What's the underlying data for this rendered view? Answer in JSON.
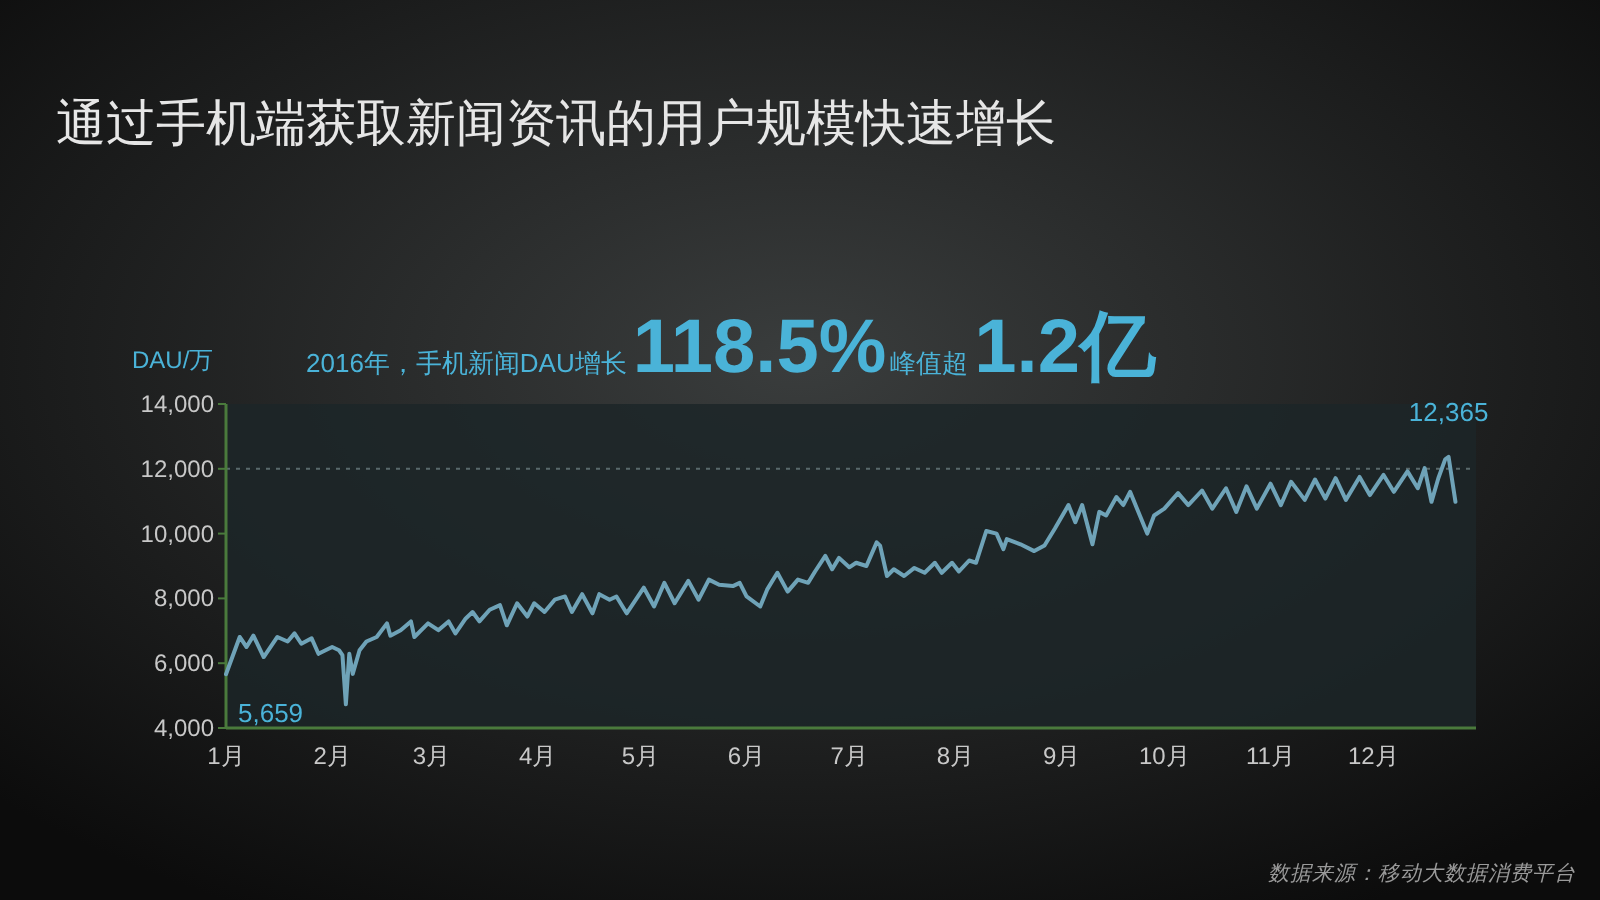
{
  "chart_data": {
    "type": "line",
    "title": "通过手机端获取新闻资讯的用户规模快速增长",
    "ylabel": "DAU/万",
    "x": [
      "--01-01",
      "--01-05",
      "--01-07",
      "--01-09",
      "--01-12",
      "--01-16",
      "--01-19",
      "--01-21",
      "--01-23",
      "--01-26",
      "--01-28",
      "--02-01",
      "--02-03",
      "--02-04",
      "--02-05",
      "--02-06",
      "--02-07",
      "--02-09",
      "--02-11",
      "--02-14",
      "--02-17",
      "--02-18",
      "--02-21",
      "--02-24",
      "--02-25",
      "--02-29",
      "--03-03",
      "--03-06",
      "--03-08",
      "--03-11",
      "--03-13",
      "--03-15",
      "--03-18",
      "--03-21",
      "--03-23",
      "--03-26",
      "--03-29",
      "--03-31",
      "--04-03",
      "--04-06",
      "--04-09",
      "--04-11",
      "--04-14",
      "--04-17",
      "--04-19",
      "--04-22",
      "--04-24",
      "--04-27",
      "--05-02",
      "--05-05",
      "--05-08",
      "--05-11",
      "--05-15",
      "--05-18",
      "--05-21",
      "--05-24",
      "--05-28",
      "--05-30",
      "--06-01",
      "--06-05",
      "--06-07",
      "--06-10",
      "--06-13",
      "--06-16",
      "--06-19",
      "--06-21",
      "--06-24",
      "--06-26",
      "--06-28",
      "--07-01",
      "--07-03",
      "--07-06",
      "--07-09",
      "--07-10",
      "--07-12",
      "--07-14",
      "--07-17",
      "--07-20",
      "--07-23",
      "--07-26",
      "--07-28",
      "--07-31",
      "--08-02",
      "--08-05",
      "--08-07",
      "--08-10",
      "--08-13",
      "--08-15",
      "--08-16",
      "--08-20",
      "--08-24",
      "--08-27",
      "--08-30",
      "--09-03",
      "--09-05",
      "--09-07",
      "--09-10",
      "--09-12",
      "--09-14",
      "--09-17",
      "--09-19",
      "--09-21",
      "--09-26",
      "--09-28",
      "--10-01",
      "--10-05",
      "--10-08",
      "--10-12",
      "--10-15",
      "--10-19",
      "--10-22",
      "--10-25",
      "--10-28",
      "--11-01",
      "--11-04",
      "--11-07",
      "--11-11",
      "--11-14",
      "--11-17",
      "--11-20",
      "--11-23",
      "--11-27",
      "--11-30",
      "--12-04",
      "--12-07",
      "--12-11",
      "--12-14",
      "--12-16",
      "--12-18",
      "--12-20",
      "--12-22",
      "--12-23",
      "--12-25"
    ],
    "series": [
      {
        "color": "#6fa3b8",
        "values": [
          5659,
          6810,
          6500,
          6850,
          6190,
          6810,
          6670,
          6920,
          6600,
          6770,
          6290,
          6500,
          6400,
          6250,
          4730,
          6290,
          5670,
          6400,
          6670,
          6810,
          7230,
          6850,
          7020,
          7290,
          6810,
          7230,
          7020,
          7290,
          6920,
          7380,
          7580,
          7290,
          7650,
          7790,
          7170,
          7850,
          7440,
          7850,
          7580,
          7960,
          8060,
          7580,
          8130,
          7540,
          8130,
          7960,
          8060,
          7540,
          8330,
          7750,
          8480,
          7850,
          8540,
          7960,
          8580,
          8420,
          8380,
          8480,
          8060,
          7750,
          8270,
          8790,
          8210,
          8580,
          8480,
          8830,
          9310,
          8900,
          9250,
          8960,
          9100,
          9000,
          9730,
          9630,
          8690,
          8900,
          8690,
          8940,
          8790,
          9100,
          8790,
          9100,
          8830,
          9170,
          9100,
          10080,
          10000,
          9520,
          9830,
          9670,
          9460,
          9630,
          10150,
          10880,
          10350,
          10880,
          9670,
          10670,
          10560,
          11130,
          10880,
          11290,
          10000,
          10560,
          10770,
          11250,
          10880,
          11330,
          10770,
          11400,
          10670,
          11460,
          10770,
          11540,
          10880,
          11600,
          11040,
          11670,
          11080,
          11710,
          11040,
          11750,
          11190,
          11810,
          11290,
          11920,
          11400,
          12020,
          10980,
          11710,
          12290,
          12365,
          10980
        ],
        "value_labels": [
          "5,659",
          null,
          null,
          null,
          null,
          null,
          null,
          null,
          null,
          null,
          null,
          null,
          null,
          null,
          null,
          null,
          null,
          null,
          null,
          null,
          null,
          null,
          null,
          null,
          null,
          null,
          null,
          null,
          null,
          null,
          null,
          null,
          null,
          null,
          null,
          null,
          null,
          null,
          null,
          null,
          null,
          null,
          null,
          null,
          null,
          null,
          null,
          null,
          null,
          null,
          null,
          null,
          null,
          null,
          null,
          null,
          null,
          null,
          null,
          null,
          null,
          null,
          null,
          null,
          null,
          null,
          null,
          null,
          null,
          null,
          null,
          null,
          null,
          null,
          null,
          null,
          null,
          null,
          null,
          null,
          null,
          null,
          null,
          null,
          null,
          null,
          null,
          null,
          null,
          null,
          null,
          null,
          null,
          null,
          null,
          null,
          null,
          null,
          null,
          null,
          null,
          null,
          null,
          null,
          null,
          null,
          null,
          null,
          null,
          null,
          null,
          null,
          null,
          null,
          null,
          null,
          null,
          null,
          null,
          null,
          null,
          null,
          null,
          null,
          null,
          null,
          null,
          null,
          null,
          null,
          null,
          "12,365",
          null
        ]
      }
    ],
    "xlim": [
      "--01-01",
      "--12-31"
    ],
    "xticks": [
      {
        "value": "--01-01",
        "label": "1月"
      },
      {
        "value": "--02-01",
        "label": "2月"
      },
      {
        "value": "--03-01",
        "label": "3月"
      },
      {
        "value": "--04-01",
        "label": "4月"
      },
      {
        "value": "--05-01",
        "label": "5月"
      },
      {
        "value": "--06-01",
        "label": "6月"
      },
      {
        "value": "--07-01",
        "label": "7月"
      },
      {
        "value": "--08-01",
        "label": "8月"
      },
      {
        "value": "--09-01",
        "label": "9月"
      },
      {
        "value": "--10-01",
        "label": "10月"
      },
      {
        "value": "--11-01",
        "label": "11月"
      },
      {
        "value": "--12-01",
        "label": "12月"
      }
    ],
    "ylim": [
      4000,
      14000
    ],
    "yticks": [
      {
        "value": 4000,
        "label": "4,000"
      },
      {
        "value": 6000,
        "label": "6,000"
      },
      {
        "value": 8000,
        "label": "8,000"
      },
      {
        "value": 10000,
        "label": "10,000"
      },
      {
        "value": 12000,
        "label": "12,000"
      },
      {
        "value": 14000,
        "label": "14,000"
      }
    ],
    "ref_lines": [
      {
        "axis": "y",
        "value": 12000,
        "color": "#5a6a6c",
        "line_style": "dotted"
      }
    ],
    "annotations": [
      "2016年，手机新闻DAU增长",
      "118.5%",
      "峰值超",
      "1.2亿",
      "数据来源：移动大数据消费平台"
    ],
    "grid": false,
    "marker": "none",
    "line_style": "solid"
  }
}
